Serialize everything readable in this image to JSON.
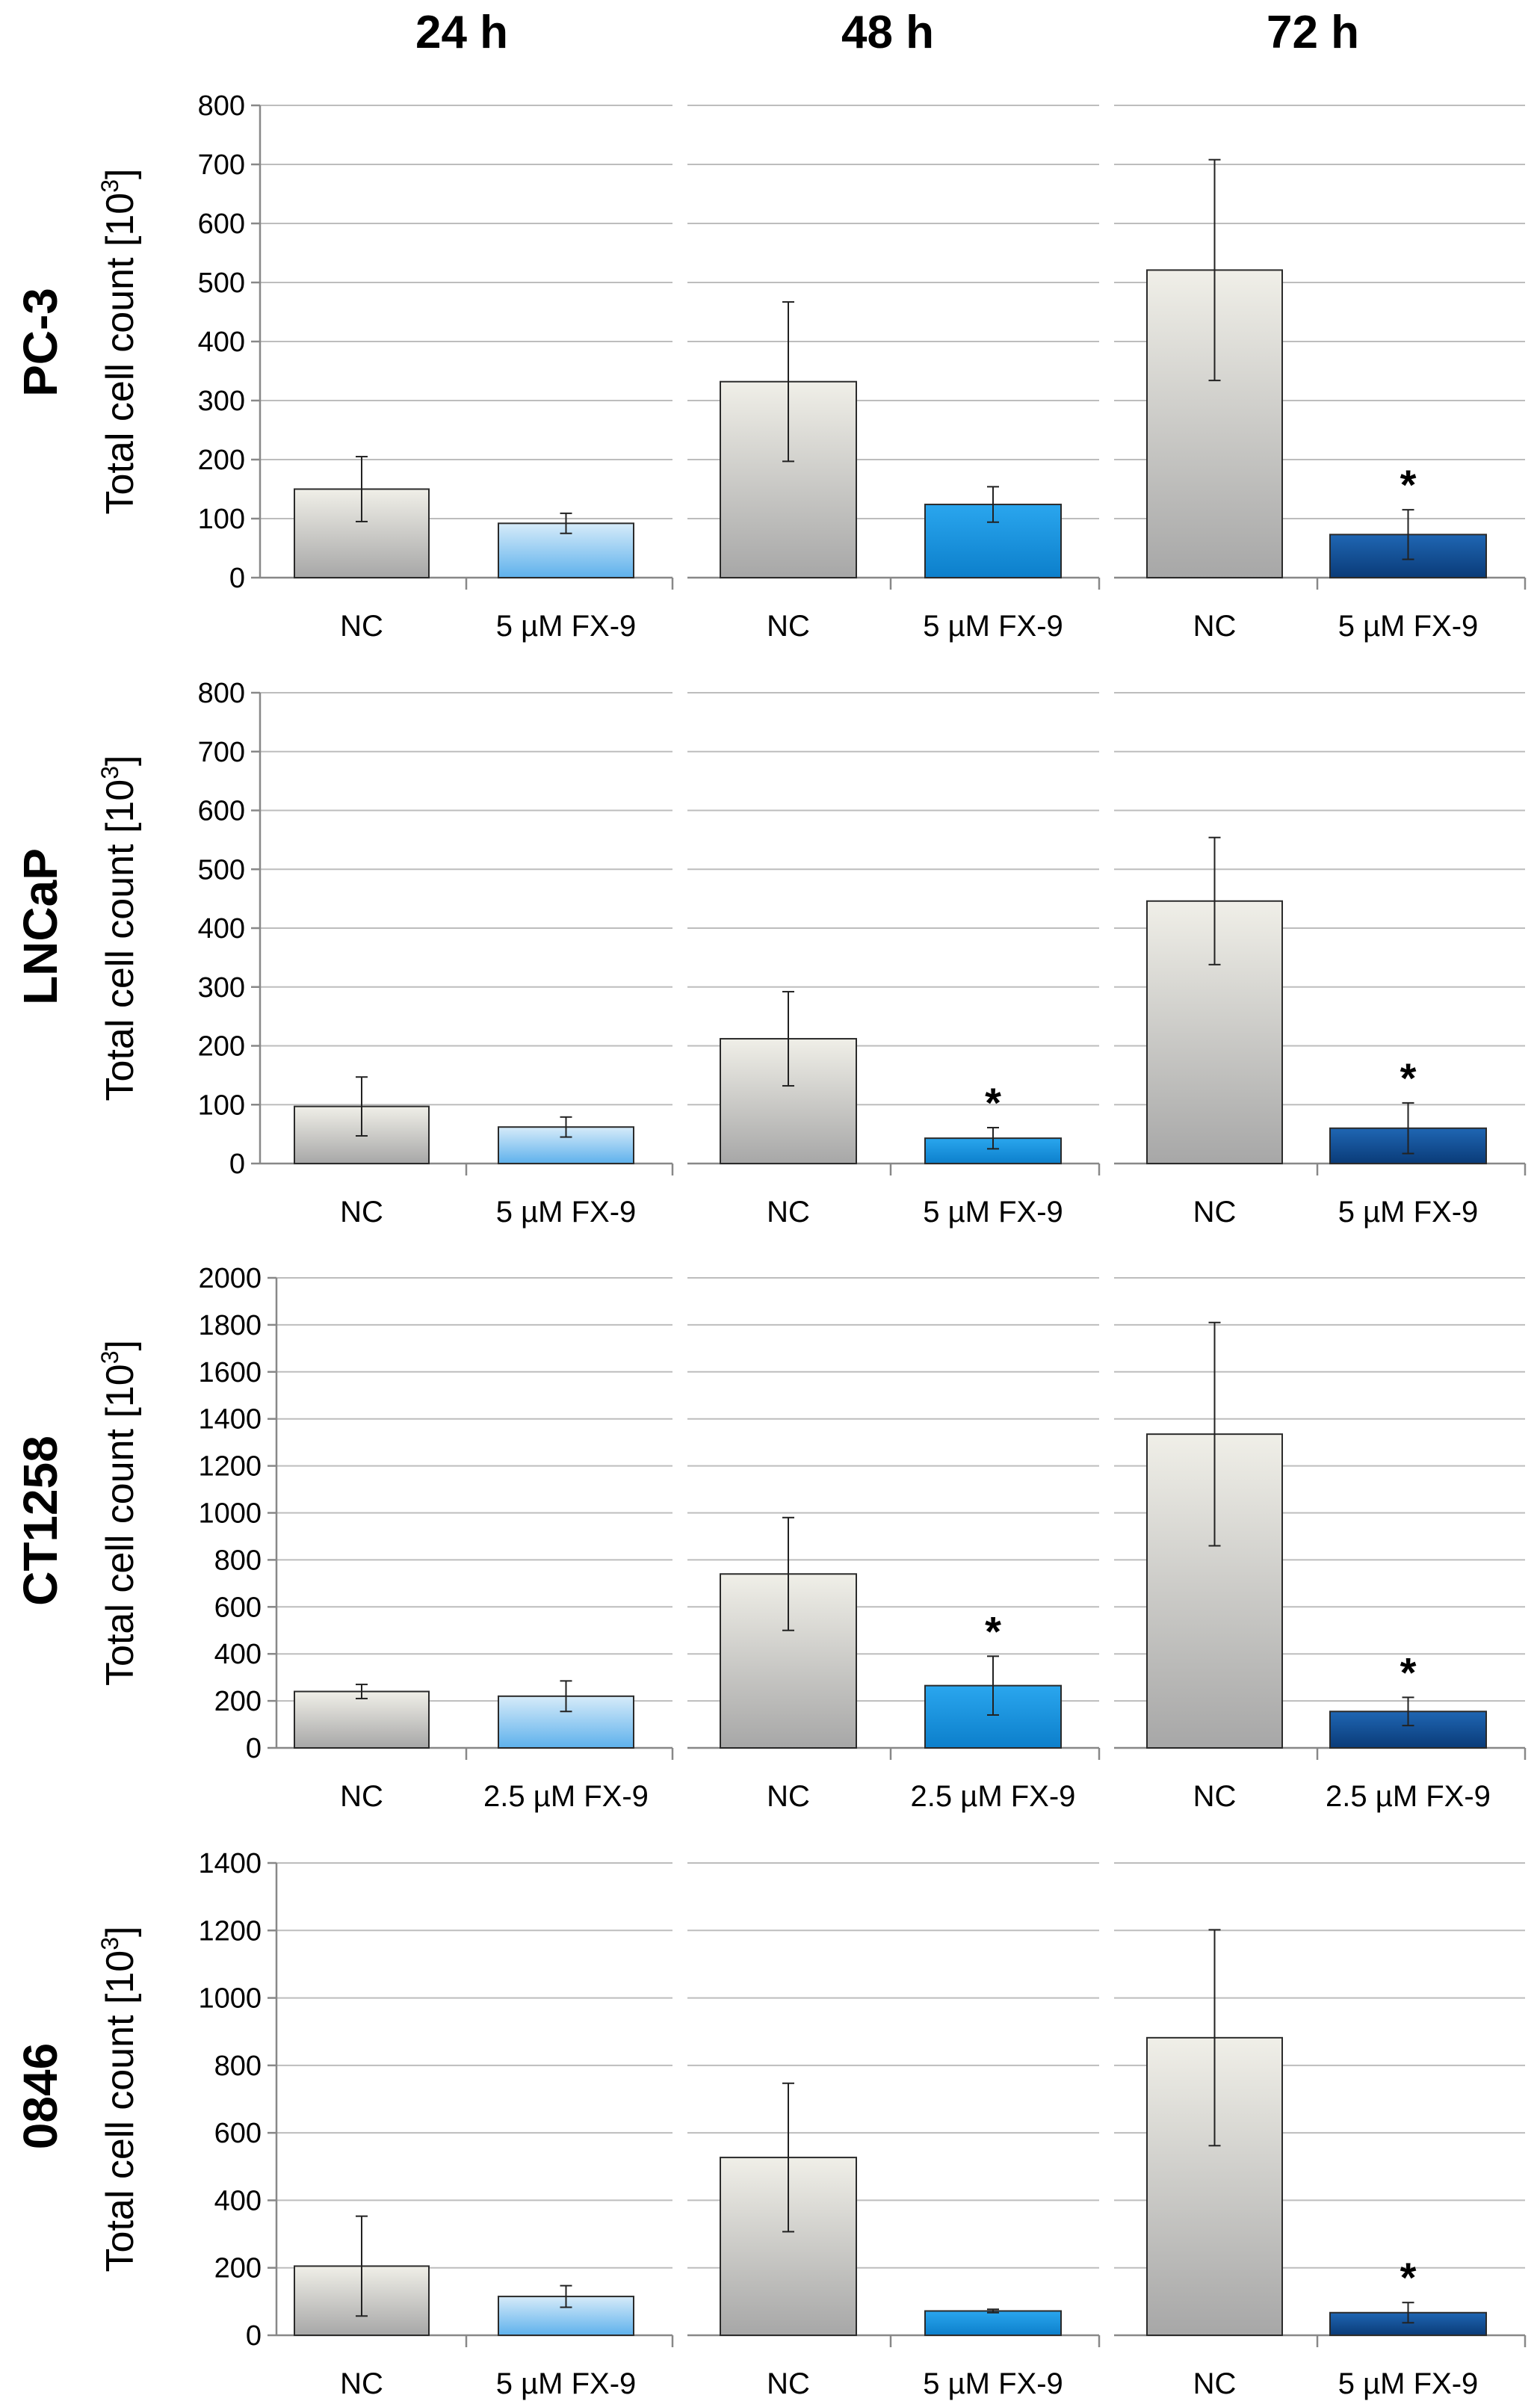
{
  "chart_data": [
    {
      "type": "bar",
      "cell_line": "PC-3",
      "timepoint": "24 h",
      "ylabel": "Total cell count [10",
      "ylabel_sup": "3",
      "ylabel_close": "]",
      "ylim": [
        0,
        800
      ],
      "yticks": [
        0,
        100,
        200,
        300,
        400,
        500,
        600,
        700,
        800
      ],
      "categories": [
        "NC",
        "5 µM FX-9"
      ],
      "values": [
        150,
        92
      ],
      "errors": [
        55,
        17
      ],
      "bar_colors": [
        "#bdbdbd",
        "#8ec9f2"
      ],
      "significance": [
        "",
        ""
      ]
    },
    {
      "type": "bar",
      "cell_line": "PC-3",
      "timepoint": "48 h",
      "ylim": [
        0,
        800
      ],
      "yticks": [
        0,
        100,
        200,
        300,
        400,
        500,
        600,
        700,
        800
      ],
      "categories": [
        "NC",
        "5 µM FX-9"
      ],
      "values": [
        332,
        124
      ],
      "errors": [
        135,
        30
      ],
      "bar_colors": [
        "#bdbdbd",
        "#1ea0e6"
      ],
      "significance": [
        "",
        ""
      ]
    },
    {
      "type": "bar",
      "cell_line": "PC-3",
      "timepoint": "72 h",
      "ylim": [
        0,
        800
      ],
      "yticks": [
        0,
        100,
        200,
        300,
        400,
        500,
        600,
        700,
        800
      ],
      "categories": [
        "NC",
        "5 µM FX-9"
      ],
      "values": [
        521,
        73
      ],
      "errors": [
        187,
        42
      ],
      "bar_colors": [
        "#bdbdbd",
        "#0d4f9c"
      ],
      "significance": [
        "",
        "*"
      ]
    },
    {
      "type": "bar",
      "cell_line": "LNCaP",
      "timepoint": "24 h",
      "ylabel": "Total cell count [10",
      "ylabel_sup": "3",
      "ylabel_close": "]",
      "ylim": [
        0,
        800
      ],
      "yticks": [
        0,
        100,
        200,
        300,
        400,
        500,
        600,
        700,
        800
      ],
      "categories": [
        "NC",
        "5 µM FX-9"
      ],
      "values": [
        97,
        62
      ],
      "errors": [
        50,
        17
      ],
      "bar_colors": [
        "#bdbdbd",
        "#8ec9f2"
      ],
      "significance": [
        "",
        ""
      ]
    },
    {
      "type": "bar",
      "cell_line": "LNCaP",
      "timepoint": "48 h",
      "ylim": [
        0,
        800
      ],
      "yticks": [
        0,
        100,
        200,
        300,
        400,
        500,
        600,
        700,
        800
      ],
      "categories": [
        "NC",
        "5 µM FX-9"
      ],
      "values": [
        212,
        43
      ],
      "errors": [
        80,
        18
      ],
      "bar_colors": [
        "#bdbdbd",
        "#1ea0e6"
      ],
      "significance": [
        "",
        "*"
      ]
    },
    {
      "type": "bar",
      "cell_line": "LNCaP",
      "timepoint": "72 h",
      "ylim": [
        0,
        800
      ],
      "yticks": [
        0,
        100,
        200,
        300,
        400,
        500,
        600,
        700,
        800
      ],
      "categories": [
        "NC",
        "5 µM FX-9"
      ],
      "values": [
        446,
        60
      ],
      "errors": [
        108,
        43
      ],
      "bar_colors": [
        "#bdbdbd",
        "#0d4f9c"
      ],
      "significance": [
        "",
        "*"
      ]
    },
    {
      "type": "bar",
      "cell_line": "CT1258",
      "timepoint": "24 h",
      "ylabel": "Total cell count [10",
      "ylabel_sup": "3",
      "ylabel_close": "]",
      "ylim": [
        0,
        2000
      ],
      "yticks": [
        0,
        200,
        400,
        600,
        800,
        1000,
        1200,
        1400,
        1600,
        1800,
        2000
      ],
      "categories": [
        "NC",
        "2.5 µM FX-9"
      ],
      "values": [
        240,
        220
      ],
      "errors": [
        30,
        65
      ],
      "bar_colors": [
        "#bdbdbd",
        "#8ec9f2"
      ],
      "significance": [
        "",
        ""
      ]
    },
    {
      "type": "bar",
      "cell_line": "CT1258",
      "timepoint": "48 h",
      "ylim": [
        0,
        2000
      ],
      "yticks": [
        0,
        200,
        400,
        600,
        800,
        1000,
        1200,
        1400,
        1600,
        1800,
        2000
      ],
      "categories": [
        "NC",
        "2.5 µM FX-9"
      ],
      "values": [
        740,
        265
      ],
      "errors": [
        240,
        125
      ],
      "bar_colors": [
        "#bdbdbd",
        "#1ea0e6"
      ],
      "significance": [
        "",
        "*"
      ]
    },
    {
      "type": "bar",
      "cell_line": "CT1258",
      "timepoint": "72 h",
      "ylim": [
        0,
        2000
      ],
      "yticks": [
        0,
        200,
        400,
        600,
        800,
        1000,
        1200,
        1400,
        1600,
        1800,
        2000
      ],
      "categories": [
        "NC",
        "2.5 µM FX-9"
      ],
      "values": [
        1335,
        155
      ],
      "errors": [
        475,
        60
      ],
      "bar_colors": [
        "#bdbdbd",
        "#0d4f9c"
      ],
      "significance": [
        "",
        "*"
      ]
    },
    {
      "type": "bar",
      "cell_line": "0846",
      "timepoint": "24 h",
      "ylabel": "Total cell count [10",
      "ylabel_sup": "3",
      "ylabel_close": "]",
      "ylim": [
        0,
        1400
      ],
      "yticks": [
        0,
        200,
        400,
        600,
        800,
        1000,
        1200,
        1400
      ],
      "categories": [
        "NC",
        "5 µM FX-9"
      ],
      "values": [
        205,
        115
      ],
      "errors": [
        148,
        32
      ],
      "bar_colors": [
        "#bdbdbd",
        "#8ec9f2"
      ],
      "significance": [
        "",
        ""
      ]
    },
    {
      "type": "bar",
      "cell_line": "0846",
      "timepoint": "48 h",
      "ylim": [
        0,
        1400
      ],
      "yticks": [
        0,
        200,
        400,
        600,
        800,
        1000,
        1200,
        1400
      ],
      "categories": [
        "NC",
        "5 µM FX-9"
      ],
      "values": [
        527,
        72
      ],
      "errors": [
        220,
        5
      ],
      "bar_colors": [
        "#bdbdbd",
        "#1ea0e6"
      ],
      "significance": [
        "",
        ""
      ]
    },
    {
      "type": "bar",
      "cell_line": "0846",
      "timepoint": "72 h",
      "ylim": [
        0,
        1400
      ],
      "yticks": [
        0,
        200,
        400,
        600,
        800,
        1000,
        1200,
        1400
      ],
      "categories": [
        "NC",
        "5 µM FX-9"
      ],
      "values": [
        882,
        67
      ],
      "errors": [
        320,
        30
      ],
      "bar_colors": [
        "#bdbdbd",
        "#0d4f9c"
      ],
      "significance": [
        "",
        "*"
      ]
    }
  ],
  "column_titles": [
    "24 h",
    "48 h",
    "72 h"
  ],
  "row_titles": [
    "PC-3",
    "LNCaP",
    "CT1258",
    "0846"
  ]
}
